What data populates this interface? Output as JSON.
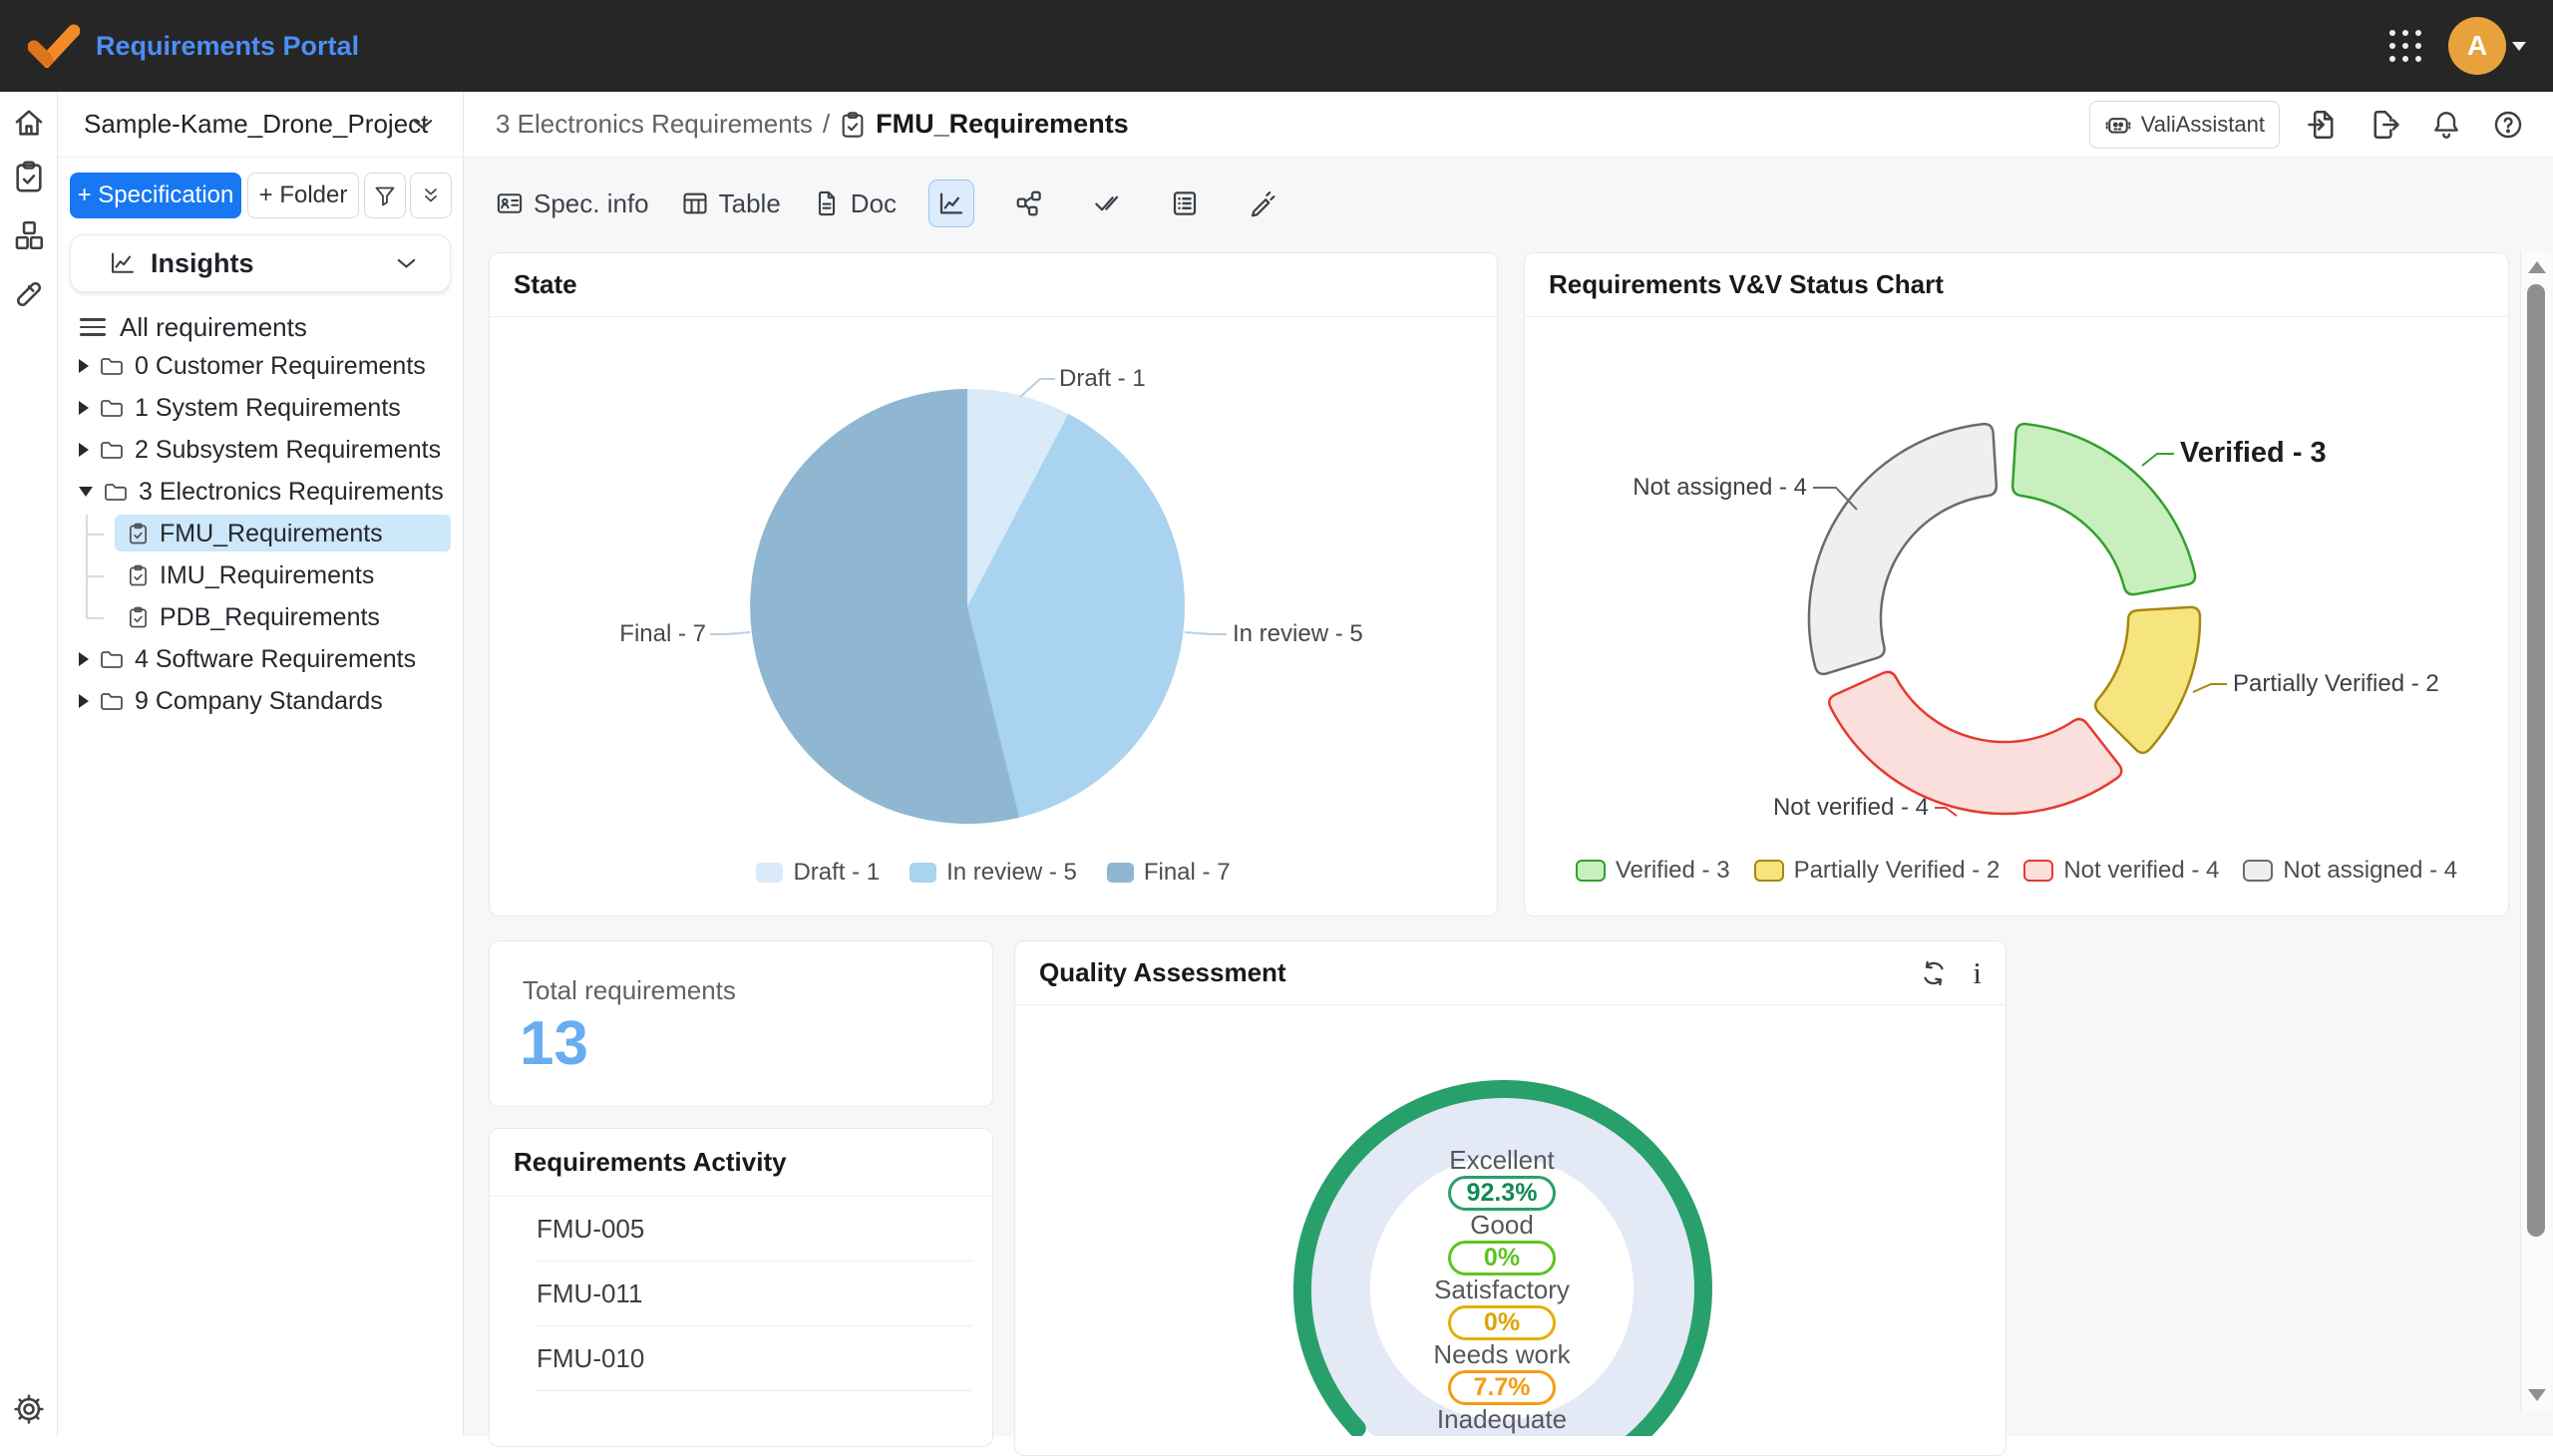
{
  "topbar": {
    "title": "Requirements Portal",
    "avatar_initial": "A"
  },
  "sidebar": {
    "project_name": "Sample-Kame_Drone_Project",
    "new_specification_label": "+ Specification",
    "new_folder_label": "+ Folder",
    "insights_label": "Insights",
    "all_requirements_label": "All requirements",
    "tree": [
      {
        "label": "0 Customer Requirements",
        "type": "folder",
        "state": "collapsed"
      },
      {
        "label": "1 System Requirements",
        "type": "folder",
        "state": "collapsed"
      },
      {
        "label": "2 Subsystem Requirements",
        "type": "folder",
        "state": "collapsed"
      },
      {
        "label": "3 Electronics Requirements",
        "type": "folder",
        "state": "expanded"
      },
      {
        "label": "FMU_Requirements",
        "type": "specification",
        "child": true,
        "selected": true
      },
      {
        "label": "IMU_Requirements",
        "type": "specification",
        "child": true
      },
      {
        "label": "PDB_Requirements",
        "type": "specification",
        "child": true
      },
      {
        "label": "4 Software Requirements",
        "type": "folder",
        "state": "collapsed"
      },
      {
        "label": "9 Company Standards",
        "type": "folder",
        "state": "collapsed"
      }
    ]
  },
  "header": {
    "breadcrumb_parent": "3 Electronics Requirements",
    "breadcrumb_separator": "/",
    "current_page": "FMU_Requirements",
    "assistant_label": "ValiAssistant"
  },
  "toolbar": {
    "tabs": [
      {
        "label": "Spec. info"
      },
      {
        "label": "Table"
      },
      {
        "label": "Doc"
      }
    ]
  },
  "cards": {
    "total": {
      "label": "Total requirements",
      "value": "13"
    },
    "activity": {
      "title": "Requirements Activity",
      "items": [
        "FMU-005",
        "FMU-011",
        "FMU-010"
      ]
    }
  },
  "chart_data": [
    {
      "type": "pie",
      "title": "State",
      "categories": [
        "Draft",
        "In review",
        "Final"
      ],
      "values": [
        1,
        5,
        7
      ],
      "labels": [
        "Draft - 1",
        "In review - 5",
        "Final - 7"
      ],
      "colors": [
        "#d9eaf8",
        "#a9d3ee",
        "#8fb7d1"
      ],
      "legend_position": "bottom",
      "total": 13
    },
    {
      "type": "donut",
      "title": "Requirements V&V Status Chart",
      "categories": [
        "Verified",
        "Partially Verified",
        "Not verified",
        "Not assigned"
      ],
      "values": [
        3,
        2,
        4,
        4
      ],
      "labels": [
        "Verified - 3",
        "Partially Verified - 2",
        "Not verified - 4",
        "Not assigned - 4"
      ],
      "fill_colors": [
        "#c9efbf",
        "#f6e57e",
        "#fbdfdd",
        "#efefef"
      ],
      "stroke_colors": [
        "#33a02c",
        "#a8870e",
        "#e53a30",
        "#6b6b6b"
      ],
      "highlighted_label": "Verified - 3",
      "legend_position": "bottom",
      "total": 13
    },
    {
      "type": "gauge",
      "title": "Quality Assessment",
      "metrics": [
        {
          "label": "Excellent",
          "value": "92.3%",
          "color": "#27a069",
          "text_color": "#118a53"
        },
        {
          "label": "Good",
          "value": "0%",
          "color": "#5dc422",
          "text_color": "#5dc422"
        },
        {
          "label": "Satisfactory",
          "value": "0%",
          "color": "#e3b004",
          "text_color": "#dca400"
        },
        {
          "label": "Needs work",
          "value": "7.7%",
          "color": "#f59d12",
          "text_color": "#f59d12"
        },
        {
          "label": "Inadequate",
          "value": null
        }
      ],
      "ring": {
        "main_pct": 92.3,
        "main_color": "#28a06c",
        "secondary_pct": 7.7,
        "secondary_color": "#f6a41f"
      }
    }
  ]
}
